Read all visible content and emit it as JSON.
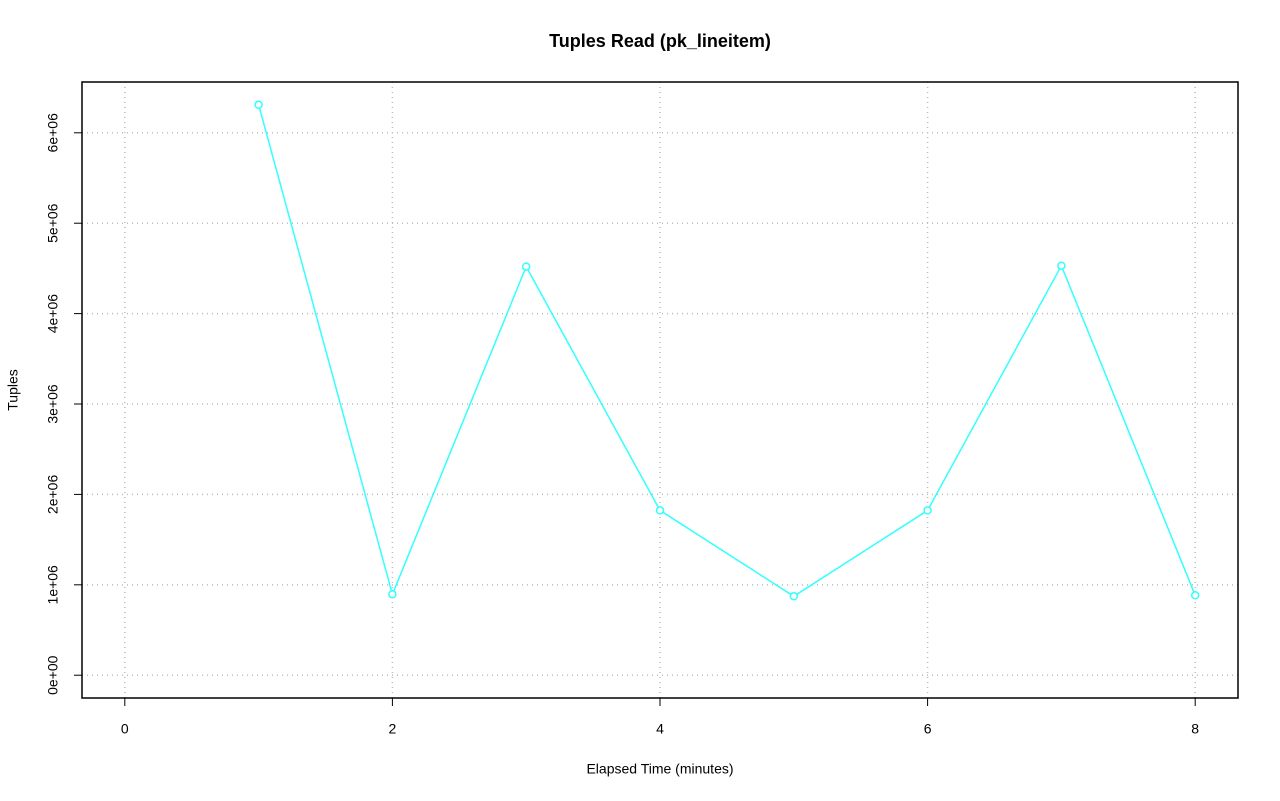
{
  "chart_data": {
    "type": "line",
    "title": "Tuples Read (pk_lineitem)",
    "x_label": "Elapsed Time (minutes)",
    "y_label": "Tuples",
    "x": [
      1,
      2,
      3,
      4,
      5,
      6,
      7,
      8
    ],
    "series": [
      {
        "color": "#33ffff",
        "values": [
          6310000,
          895000,
          4520000,
          1823000,
          873000,
          1823000,
          4530000,
          884000
        ]
      }
    ],
    "xlim": [
      -0.32,
      8.32
    ],
    "xticks": [
      0,
      2,
      4,
      6,
      8
    ],
    "ylim": [
      -252000,
      6562000
    ],
    "yticks": [
      {
        "value": 0,
        "label": "0e+00"
      },
      {
        "value": 1000000,
        "label": "1e+06"
      },
      {
        "value": 2000000,
        "label": "2e+06"
      },
      {
        "value": 3000000,
        "label": "3e+06"
      },
      {
        "value": 4000000,
        "label": "4e+06"
      },
      {
        "value": 5000000,
        "label": "5e+06"
      },
      {
        "value": 6000000,
        "label": "6e+06"
      }
    ],
    "grid": true,
    "markers": "open-circle"
  }
}
